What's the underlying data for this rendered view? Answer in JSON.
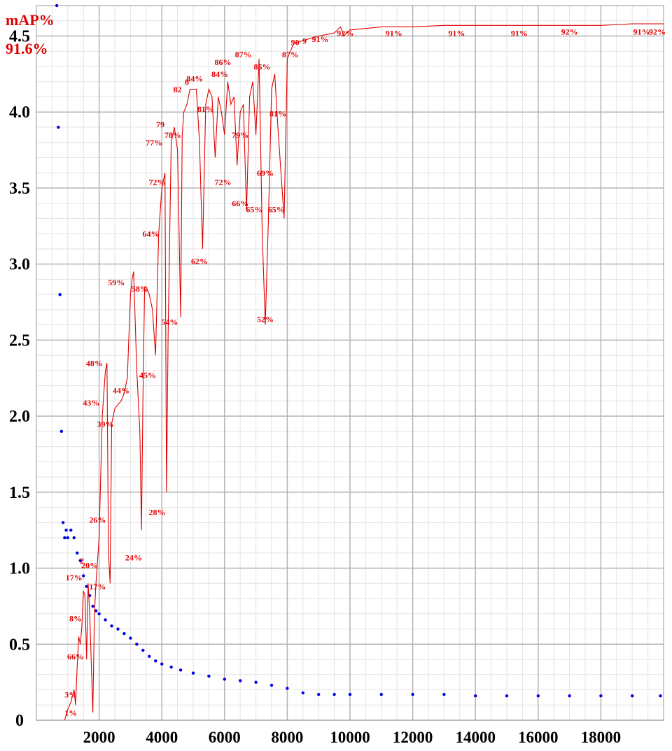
{
  "header": {
    "metric_label": "mAP%",
    "best_value": "91.6%"
  },
  "colors": {
    "loss": "#0000e6",
    "map": "#e00000",
    "grid_major": "#b4b4b4",
    "grid_minor": "#e3e3e3",
    "axis": "#000000"
  },
  "chart_data": {
    "type": "line",
    "title": "",
    "xlabel": "",
    "ylabel": "",
    "xlim": [
      0,
      20000
    ],
    "ylim": [
      0,
      4.7
    ],
    "grid": true,
    "x_ticks": [
      2000,
      4000,
      6000,
      8000,
      10000,
      12000,
      14000,
      16000,
      18000
    ],
    "y_ticks": [
      {
        "value": 0,
        "label": "0"
      },
      {
        "value": 0.5,
        "label": "0.5"
      },
      {
        "value": 1.0,
        "label": "1.0"
      },
      {
        "value": 1.5,
        "label": "1.5"
      },
      {
        "value": 2.0,
        "label": "2.0"
      },
      {
        "value": 2.5,
        "label": "2.5"
      },
      {
        "value": 3.0,
        "label": "3.0"
      },
      {
        "value": 3.5,
        "label": "3.5"
      },
      {
        "value": 4.0,
        "label": "4.0"
      },
      {
        "value": 4.5,
        "label": "4.5"
      }
    ],
    "series": [
      {
        "type": "scatter",
        "color": "#0000e6",
        "points": [
          [
            650,
            4.7
          ],
          [
            700,
            3.9
          ],
          [
            750,
            2.8
          ],
          [
            800,
            1.9
          ],
          [
            850,
            1.3
          ],
          [
            900,
            1.2
          ],
          [
            950,
            1.25
          ],
          [
            1000,
            1.2
          ],
          [
            1100,
            1.25
          ],
          [
            1200,
            1.2
          ],
          [
            1300,
            1.1
          ],
          [
            1400,
            1.05
          ],
          [
            1500,
            0.95
          ],
          [
            1600,
            0.88
          ],
          [
            1700,
            0.82
          ],
          [
            1800,
            0.75
          ],
          [
            1900,
            0.72
          ],
          [
            2000,
            0.7
          ],
          [
            2200,
            0.66
          ],
          [
            2400,
            0.62
          ],
          [
            2600,
            0.6
          ],
          [
            2800,
            0.57
          ],
          [
            3000,
            0.54
          ],
          [
            3200,
            0.5
          ],
          [
            3400,
            0.46
          ],
          [
            3600,
            0.42
          ],
          [
            3800,
            0.39
          ],
          [
            4000,
            0.37
          ],
          [
            4300,
            0.35
          ],
          [
            4600,
            0.33
          ],
          [
            5000,
            0.31
          ],
          [
            5500,
            0.29
          ],
          [
            6000,
            0.27
          ],
          [
            6500,
            0.26
          ],
          [
            7000,
            0.25
          ],
          [
            7500,
            0.23
          ],
          [
            8000,
            0.21
          ],
          [
            8500,
            0.18
          ],
          [
            9000,
            0.17
          ],
          [
            9500,
            0.17
          ],
          [
            10000,
            0.17
          ],
          [
            11000,
            0.17
          ],
          [
            12000,
            0.17
          ],
          [
            13000,
            0.17
          ],
          [
            14000,
            0.16
          ],
          [
            15000,
            0.16
          ],
          [
            16000,
            0.16
          ],
          [
            17000,
            0.16
          ],
          [
            18000,
            0.16
          ],
          [
            19000,
            0.16
          ],
          [
            19900,
            0.16
          ]
        ]
      },
      {
        "type": "line",
        "color": "#e00000",
        "points": [
          [
            900,
            0
          ],
          [
            1000,
            0.07
          ],
          [
            1100,
            0.12
          ],
          [
            1200,
            0.2
          ],
          [
            1250,
            0.1
          ],
          [
            1300,
            0.35
          ],
          [
            1350,
            0.55
          ],
          [
            1400,
            0.5
          ],
          [
            1450,
            0.62
          ],
          [
            1500,
            0.85
          ],
          [
            1550,
            0.82
          ],
          [
            1600,
            0.4
          ],
          [
            1650,
            0.9
          ],
          [
            1700,
            0.7
          ],
          [
            1800,
            0.05
          ],
          [
            1850,
            0.7
          ],
          [
            1900,
            0.9
          ],
          [
            2000,
            1.2
          ],
          [
            2100,
            2.0
          ],
          [
            2150,
            2.15
          ],
          [
            2200,
            2.3
          ],
          [
            2250,
            2.35
          ],
          [
            2300,
            1.1
          ],
          [
            2350,
            0.9
          ],
          [
            2400,
            1.95
          ],
          [
            2500,
            2.05
          ],
          [
            2700,
            2.1
          ],
          [
            2800,
            2.15
          ],
          [
            2900,
            2.25
          ],
          [
            3000,
            2.8
          ],
          [
            3050,
            2.9
          ],
          [
            3100,
            2.95
          ],
          [
            3200,
            2.3
          ],
          [
            3300,
            1.9
          ],
          [
            3350,
            1.25
          ],
          [
            3400,
            2.15
          ],
          [
            3450,
            2.85
          ],
          [
            3500,
            2.85
          ],
          [
            3600,
            2.8
          ],
          [
            3700,
            2.7
          ],
          [
            3800,
            2.4
          ],
          [
            3900,
            3.2
          ],
          [
            4000,
            3.5
          ],
          [
            4100,
            3.6
          ],
          [
            4150,
            1.5
          ],
          [
            4200,
            2.55
          ],
          [
            4300,
            3.8
          ],
          [
            4400,
            3.9
          ],
          [
            4500,
            3.75
          ],
          [
            4600,
            2.65
          ],
          [
            4650,
            3.85
          ],
          [
            4700,
            4.0
          ],
          [
            4800,
            4.05
          ],
          [
            4900,
            4.15
          ],
          [
            5100,
            4.15
          ],
          [
            5200,
            3.8
          ],
          [
            5300,
            3.1
          ],
          [
            5400,
            4.05
          ],
          [
            5500,
            4.15
          ],
          [
            5600,
            4.1
          ],
          [
            5700,
            3.7
          ],
          [
            5800,
            4.1
          ],
          [
            5900,
            4.0
          ],
          [
            6000,
            3.85
          ],
          [
            6100,
            4.2
          ],
          [
            6200,
            4.05
          ],
          [
            6300,
            4.1
          ],
          [
            6400,
            3.65
          ],
          [
            6500,
            4.0
          ],
          [
            6600,
            4.05
          ],
          [
            6700,
            3.35
          ],
          [
            6800,
            4.1
          ],
          [
            6900,
            4.2
          ],
          [
            7000,
            3.85
          ],
          [
            7100,
            4.35
          ],
          [
            7200,
            3.2
          ],
          [
            7300,
            2.6
          ],
          [
            7400,
            3.3
          ],
          [
            7500,
            4.15
          ],
          [
            7600,
            4.25
          ],
          [
            7700,
            3.9
          ],
          [
            7800,
            3.6
          ],
          [
            7900,
            3.3
          ],
          [
            8000,
            4.35
          ],
          [
            8200,
            4.45
          ],
          [
            8500,
            4.47
          ],
          [
            9000,
            4.5
          ],
          [
            9500,
            4.52
          ],
          [
            9700,
            4.56
          ],
          [
            9800,
            4.5
          ],
          [
            10000,
            4.54
          ],
          [
            11000,
            4.56
          ],
          [
            12000,
            4.56
          ],
          [
            13000,
            4.57
          ],
          [
            14000,
            4.57
          ],
          [
            15000,
            4.57
          ],
          [
            16000,
            4.57
          ],
          [
            17000,
            4.57
          ],
          [
            18000,
            4.57
          ],
          [
            19000,
            4.58
          ],
          [
            20000,
            4.58
          ]
        ]
      }
    ],
    "annotations": [
      {
        "x": 1100,
        "y": 0.03,
        "text": "1%"
      },
      {
        "x": 1100,
        "y": 0.15,
        "text": "3%"
      },
      {
        "x": 1250,
        "y": 0.4,
        "text": "66%"
      },
      {
        "x": 1250,
        "y": 0.65,
        "text": "8%"
      },
      {
        "x": 1200,
        "y": 0.92,
        "text": "17%"
      },
      {
        "x": 1450,
        "y": 1.03,
        "text": "2"
      },
      {
        "x": 1700,
        "y": 1.0,
        "text": "20%"
      },
      {
        "x": 1950,
        "y": 0.86,
        "text": "17%"
      },
      {
        "x": 1950,
        "y": 1.3,
        "text": "26%"
      },
      {
        "x": 1850,
        "y": 2.33,
        "text": "48%"
      },
      {
        "x": 1750,
        "y": 2.07,
        "text": "43%"
      },
      {
        "x": 2200,
        "y": 1.93,
        "text": "39%"
      },
      {
        "x": 2700,
        "y": 2.15,
        "text": "44%"
      },
      {
        "x": 3550,
        "y": 2.25,
        "text": "45%"
      },
      {
        "x": 3100,
        "y": 1.05,
        "text": "24%"
      },
      {
        "x": 2550,
        "y": 2.86,
        "text": "59%"
      },
      {
        "x": 3300,
        "y": 2.82,
        "text": "58%"
      },
      {
        "x": 4250,
        "y": 2.6,
        "text": "54%"
      },
      {
        "x": 3850,
        "y": 1.35,
        "text": "28%"
      },
      {
        "x": 3650,
        "y": 3.18,
        "text": "64%"
      },
      {
        "x": 3850,
        "y": 3.52,
        "text": "72%"
      },
      {
        "x": 3750,
        "y": 3.78,
        "text": "77%"
      },
      {
        "x": 3950,
        "y": 3.9,
        "text": "79"
      },
      {
        "x": 4350,
        "y": 3.83,
        "text": "78%"
      },
      {
        "x": 4500,
        "y": 4.13,
        "text": "82"
      },
      {
        "x": 4800,
        "y": 4.18,
        "text": "8"
      },
      {
        "x": 5050,
        "y": 4.2,
        "text": "84%"
      },
      {
        "x": 5400,
        "y": 4.0,
        "text": "81%"
      },
      {
        "x": 5850,
        "y": 4.23,
        "text": "84%"
      },
      {
        "x": 5950,
        "y": 4.31,
        "text": "86%"
      },
      {
        "x": 5200,
        "y": 3.0,
        "text": "62%"
      },
      {
        "x": 5950,
        "y": 3.52,
        "text": "72%"
      },
      {
        "x": 6500,
        "y": 3.83,
        "text": "79%"
      },
      {
        "x": 6500,
        "y": 3.38,
        "text": "66%"
      },
      {
        "x": 6950,
        "y": 3.34,
        "text": "65%"
      },
      {
        "x": 6600,
        "y": 4.36,
        "text": "87%"
      },
      {
        "x": 7200,
        "y": 4.28,
        "text": "85%"
      },
      {
        "x": 7700,
        "y": 3.97,
        "text": "81%"
      },
      {
        "x": 7300,
        "y": 3.58,
        "text": "69%"
      },
      {
        "x": 7650,
        "y": 3.34,
        "text": "65%"
      },
      {
        "x": 8100,
        "y": 4.36,
        "text": "87%"
      },
      {
        "x": 7300,
        "y": 2.62,
        "text": "52%"
      },
      {
        "x": 8250,
        "y": 4.44,
        "text": "90"
      },
      {
        "x": 8550,
        "y": 4.45,
        "text": "9"
      },
      {
        "x": 9050,
        "y": 4.46,
        "text": "91%"
      },
      {
        "x": 9850,
        "y": 4.5,
        "text": "92%"
      },
      {
        "x": 11400,
        "y": 4.5,
        "text": "91%"
      },
      {
        "x": 13400,
        "y": 4.5,
        "text": "91%"
      },
      {
        "x": 15400,
        "y": 4.5,
        "text": "91%"
      },
      {
        "x": 17000,
        "y": 4.51,
        "text": "92%"
      },
      {
        "x": 19300,
        "y": 4.51,
        "text": "91%"
      },
      {
        "x": 19800,
        "y": 4.51,
        "text": "92%"
      }
    ]
  }
}
